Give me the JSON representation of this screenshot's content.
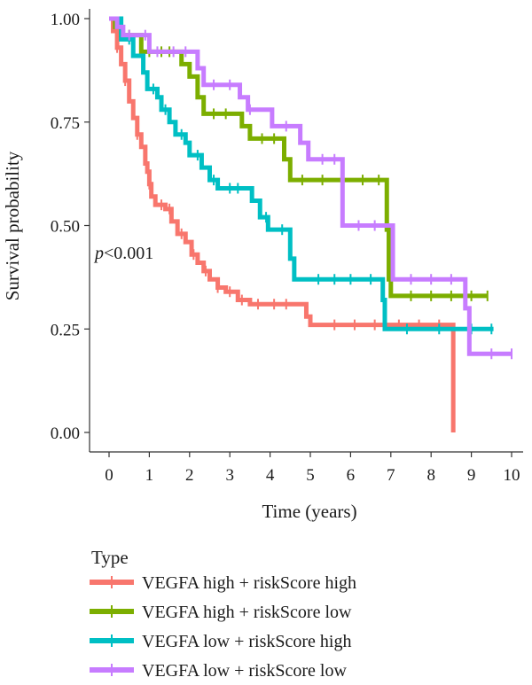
{
  "chart_data": {
    "type": "line",
    "xlabel": "Time (years)",
    "ylabel": "Survival probability",
    "xlim": [
      0,
      10
    ],
    "ylim": [
      0,
      1
    ],
    "x_ticks": [
      "0",
      "1",
      "2",
      "3",
      "4",
      "5",
      "6",
      "7",
      "8",
      "9",
      "10"
    ],
    "y_ticks": [
      "0.00",
      "0.25",
      "0.50",
      "0.75",
      "1.00"
    ],
    "annotation": {
      "italic": "p",
      "rest": "<0.001"
    },
    "legend_title": "Type",
    "legend_position": "bottom",
    "grid": false,
    "series": [
      {
        "name": "VEGFA high + riskScore high",
        "color": "#F8766D",
        "steps": [
          [
            0,
            1.0
          ],
          [
            0.1,
            0.97
          ],
          [
            0.2,
            0.93
          ],
          [
            0.3,
            0.89
          ],
          [
            0.4,
            0.85
          ],
          [
            0.5,
            0.8
          ],
          [
            0.6,
            0.76
          ],
          [
            0.7,
            0.72
          ],
          [
            0.8,
            0.69
          ],
          [
            0.9,
            0.65
          ],
          [
            0.95,
            0.63
          ],
          [
            1.0,
            0.6
          ],
          [
            1.05,
            0.57
          ],
          [
            1.15,
            0.55
          ],
          [
            1.4,
            0.54
          ],
          [
            1.55,
            0.51
          ],
          [
            1.7,
            0.48
          ],
          [
            1.9,
            0.46
          ],
          [
            2.05,
            0.43
          ],
          [
            2.2,
            0.41
          ],
          [
            2.35,
            0.39
          ],
          [
            2.5,
            0.37
          ],
          [
            2.7,
            0.35
          ],
          [
            2.9,
            0.34
          ],
          [
            3.2,
            0.32
          ],
          [
            3.5,
            0.31
          ],
          [
            4.9,
            0.28
          ],
          [
            5.0,
            0.26
          ],
          [
            8.55,
            0.26
          ],
          [
            8.55,
            0.0
          ]
        ],
        "end": 8.55,
        "censor_x": [
          0.2,
          0.4,
          0.7,
          1.0,
          1.3,
          1.5,
          1.8,
          2.1,
          2.4,
          2.7,
          3.0,
          3.3,
          3.7,
          4.1,
          4.4,
          5.6,
          6.1,
          6.6,
          7.2,
          7.7,
          8.2
        ]
      },
      {
        "name": "VEGFA high + riskScore low",
        "color": "#7CAE00",
        "steps": [
          [
            0,
            1.0
          ],
          [
            0.15,
            0.98
          ],
          [
            0.3,
            0.96
          ],
          [
            0.8,
            0.92
          ],
          [
            1.6,
            0.92
          ],
          [
            1.8,
            0.89
          ],
          [
            2.0,
            0.86
          ],
          [
            2.2,
            0.81
          ],
          [
            2.35,
            0.77
          ],
          [
            3.1,
            0.77
          ],
          [
            3.3,
            0.74
          ],
          [
            3.5,
            0.71
          ],
          [
            4.2,
            0.71
          ],
          [
            4.35,
            0.66
          ],
          [
            4.5,
            0.61
          ],
          [
            6.85,
            0.61
          ],
          [
            6.9,
            0.49
          ],
          [
            6.95,
            0.37
          ],
          [
            7.0,
            0.33
          ],
          [
            9.4,
            0.33
          ]
        ],
        "end": 9.4,
        "censor_x": [
          0.5,
          1.0,
          1.3,
          1.5,
          2.6,
          2.9,
          3.8,
          4.1,
          4.8,
          5.3,
          5.8,
          6.3,
          6.7,
          7.5,
          8.0,
          8.5,
          9.0,
          9.4
        ]
      },
      {
        "name": "VEGFA low + riskScore high",
        "color": "#00BFC4",
        "steps": [
          [
            0,
            1.0
          ],
          [
            0.3,
            0.95
          ],
          [
            0.6,
            0.91
          ],
          [
            0.85,
            0.87
          ],
          [
            0.95,
            0.83
          ],
          [
            1.2,
            0.81
          ],
          [
            1.3,
            0.78
          ],
          [
            1.5,
            0.75
          ],
          [
            1.65,
            0.72
          ],
          [
            1.9,
            0.7
          ],
          [
            2.0,
            0.67
          ],
          [
            2.3,
            0.64
          ],
          [
            2.5,
            0.61
          ],
          [
            2.7,
            0.59
          ],
          [
            3.35,
            0.59
          ],
          [
            3.55,
            0.56
          ],
          [
            3.75,
            0.52
          ],
          [
            3.95,
            0.49
          ],
          [
            4.45,
            0.49
          ],
          [
            4.5,
            0.42
          ],
          [
            4.6,
            0.37
          ],
          [
            6.75,
            0.37
          ],
          [
            6.8,
            0.32
          ],
          [
            6.85,
            0.25
          ],
          [
            9.55,
            0.25
          ]
        ],
        "end": 9.55,
        "censor_x": [
          0.5,
          1.1,
          1.4,
          1.8,
          2.2,
          2.6,
          3.0,
          3.2,
          3.9,
          4.3,
          5.2,
          5.6,
          6.0,
          6.5,
          7.4,
          8.2,
          9.0,
          9.5
        ]
      },
      {
        "name": "VEGFA low + riskScore low",
        "color": "#C77CFF",
        "steps": [
          [
            0,
            1.0
          ],
          [
            0.2,
            0.98
          ],
          [
            0.35,
            0.96
          ],
          [
            0.95,
            0.96
          ],
          [
            1.0,
            0.92
          ],
          [
            2.1,
            0.92
          ],
          [
            2.2,
            0.88
          ],
          [
            2.35,
            0.84
          ],
          [
            3.15,
            0.84
          ],
          [
            3.25,
            0.81
          ],
          [
            3.45,
            0.78
          ],
          [
            3.85,
            0.78
          ],
          [
            4.05,
            0.74
          ],
          [
            4.65,
            0.74
          ],
          [
            4.75,
            0.7
          ],
          [
            4.95,
            0.66
          ],
          [
            5.65,
            0.66
          ],
          [
            5.8,
            0.5
          ],
          [
            6.95,
            0.5
          ],
          [
            7.05,
            0.37
          ],
          [
            8.75,
            0.37
          ],
          [
            8.85,
            0.3
          ],
          [
            8.95,
            0.19
          ],
          [
            10.0,
            0.19
          ]
        ],
        "end": 10.0,
        "censor_x": [
          0.5,
          0.9,
          1.2,
          1.6,
          1.9,
          2.6,
          3.0,
          3.5,
          4.4,
          5.3,
          5.6,
          6.2,
          6.6,
          7.5,
          8.0,
          8.5,
          9.5,
          10.0
        ]
      }
    ]
  }
}
